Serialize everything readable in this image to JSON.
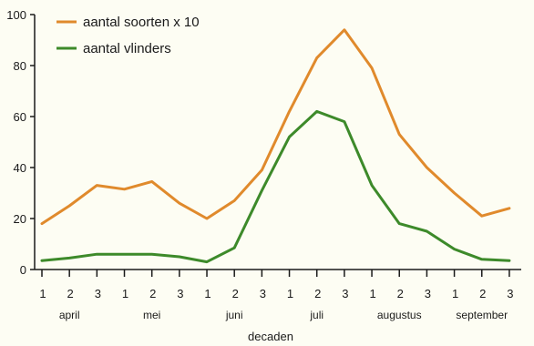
{
  "chart_data": {
    "type": "line",
    "xlabel": "decaden",
    "ylabel": "",
    "ylim": [
      0,
      100
    ],
    "yticks": [
      0,
      20,
      40,
      60,
      80,
      100
    ],
    "grid": false,
    "legend_position": "top-left",
    "x": [
      "1",
      "2",
      "3",
      "1",
      "2",
      "3",
      "1",
      "2",
      "3",
      "1",
      "2",
      "3",
      "1",
      "2",
      "3",
      "1",
      "2",
      "3"
    ],
    "months": [
      "april",
      "mei",
      "juni",
      "juli",
      "augustus",
      "september"
    ],
    "series": [
      {
        "name": "aantal soorten x 10",
        "color": "#e08a2c",
        "values": [
          18,
          25,
          33,
          31.5,
          34.5,
          26,
          20,
          27,
          39,
          62,
          83,
          94,
          79,
          53,
          40,
          30,
          21,
          24
        ]
      },
      {
        "name": "aantal vlinders",
        "color": "#3d8a2a",
        "values": [
          3.5,
          4.5,
          6,
          6,
          6,
          5,
          3,
          8.5,
          31,
          52,
          62,
          58,
          33,
          18,
          15,
          8,
          4,
          3.5
        ]
      }
    ]
  }
}
